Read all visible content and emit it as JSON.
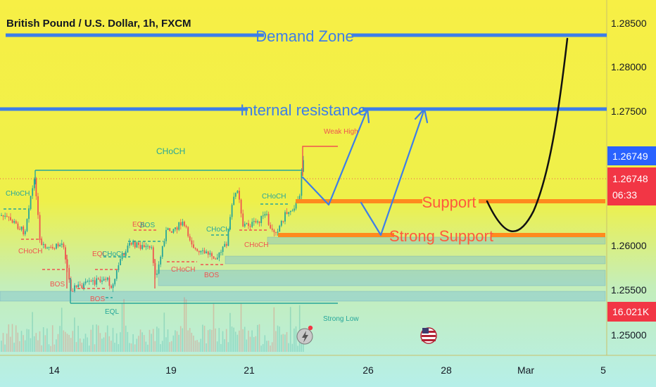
{
  "title": "British Pound / U.S. Dollar, 1h, FXCM",
  "colors": {
    "bg_top": "#f7ef45",
    "bg_bottom": "#b6efe9",
    "candle_up": "#26a69a",
    "candle_down": "#ef5350",
    "zone_line": "#3d7ee8",
    "support_line": "#ff8a1e",
    "support_text": "#ff5a3c",
    "structure_green": "#26a69a",
    "structure_red": "#ef5350",
    "price_badge_blue": "#2962ff",
    "price_badge_red": "#f23645"
  },
  "price_axis": {
    "ticks": [
      "1.28500",
      "1.28000",
      "1.27500",
      "1.26000",
      "1.25500",
      "1.25000"
    ],
    "current_price": "1.26749",
    "bid_price": "1.26748",
    "countdown": "06:33",
    "volume": "16.021K"
  },
  "time_axis": {
    "ticks": [
      "14",
      "19",
      "21",
      "26",
      "28",
      "Mar",
      "5"
    ]
  },
  "annotations": {
    "demand_zone": "Demand Zone",
    "internal_resistance": "Internal resistance",
    "support": "Support",
    "strong_support": "Strong Support",
    "weak_high": "Weak High",
    "strong_low": "Strong Low",
    "choch": "CHoCH",
    "bos": "BOS",
    "eql": "EQL"
  },
  "chart_data": {
    "type": "candlestick",
    "title": "British Pound / U.S. Dollar, 1h, FXCM",
    "y_axis_ticks": [
      1.285,
      1.28,
      1.275,
      1.26,
      1.255,
      1.25
    ],
    "x_axis_ticks": [
      "14",
      "19",
      "21",
      "26",
      "28",
      "Mar",
      "5"
    ],
    "levels": [
      {
        "label": "Demand Zone",
        "price": 1.2832
      },
      {
        "label": "Internal resistance",
        "price": 1.2752
      },
      {
        "label": "Support",
        "price": 1.2647
      },
      {
        "label": "Strong Support",
        "price": 1.2611
      },
      {
        "label": "Weak High",
        "price": 1.2709
      },
      {
        "label": "Strong Low",
        "price": 1.2535
      }
    ],
    "current_price": 1.26749,
    "close_price": 1.26748,
    "volume": "16.021K"
  }
}
